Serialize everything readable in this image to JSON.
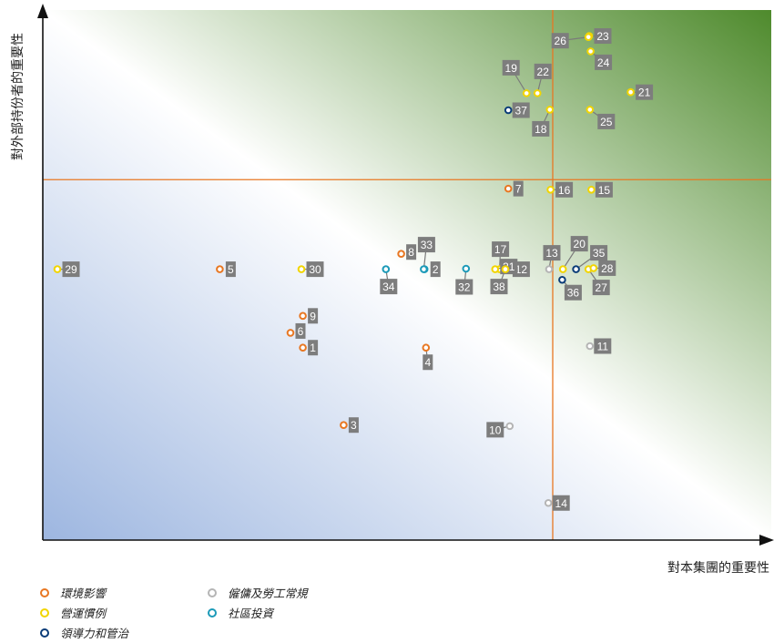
{
  "chart_data": {
    "type": "scatter",
    "xlabel": "對本集團的重要性",
    "ylabel": "對外部持份者的重要性",
    "xlim": [
      0,
      100
    ],
    "ylim": [
      0,
      100
    ],
    "grid": false,
    "quadrant_lines": {
      "x": 70,
      "y": 68
    },
    "legend_position": "bottom-left",
    "categories": [
      {
        "key": "env",
        "name": "環境影響",
        "color": "#E87722"
      },
      {
        "key": "ops",
        "name": "營運慣例",
        "color": "#F2D500"
      },
      {
        "key": "lead",
        "name": "領導力和管治",
        "color": "#0A3C78"
      },
      {
        "key": "emp",
        "name": "僱傭及勞工常規",
        "color": "#B5B5B5"
      },
      {
        "key": "com",
        "name": "社區投資",
        "color": "#1C9AB8"
      }
    ],
    "points": [
      {
        "label": "1",
        "cat": "env",
        "x": 35.7,
        "y": 36.3
      },
      {
        "label": "2",
        "cat": "com",
        "x": 52.4,
        "y": 51.1
      },
      {
        "label": "3",
        "cat": "env",
        "x": 41.3,
        "y": 21.7
      },
      {
        "label": "4",
        "cat": "env",
        "x": 52.6,
        "y": 36.3
      },
      {
        "label": "5",
        "cat": "env",
        "x": 24.3,
        "y": 51.1
      },
      {
        "label": "6",
        "cat": "env",
        "x": 34.0,
        "y": 39.1
      },
      {
        "label": "7",
        "cat": "env",
        "x": 63.9,
        "y": 66.3
      },
      {
        "label": "8",
        "cat": "env",
        "x": 49.2,
        "y": 54.0
      },
      {
        "label": "9",
        "cat": "env",
        "x": 35.7,
        "y": 42.3
      },
      {
        "label": "10",
        "cat": "emp",
        "x": 64.1,
        "y": 21.5
      },
      {
        "label": "11",
        "cat": "emp",
        "x": 75.1,
        "y": 36.6
      },
      {
        "label": "12",
        "cat": "lead",
        "x": 63.8,
        "y": 51.1
      },
      {
        "label": "13",
        "cat": "emp",
        "x": 69.5,
        "y": 51.1
      },
      {
        "label": "14",
        "cat": "emp",
        "x": 69.4,
        "y": 7.0
      },
      {
        "label": "15",
        "cat": "ops",
        "x": 75.3,
        "y": 66.1
      },
      {
        "label": "16",
        "cat": "ops",
        "x": 69.7,
        "y": 66.1
      },
      {
        "label": "17",
        "cat": "ops",
        "x": 62.7,
        "y": 51.1
      },
      {
        "label": "18",
        "cat": "ops",
        "x": 69.6,
        "y": 81.2
      },
      {
        "label": "19",
        "cat": "ops",
        "x": 66.4,
        "y": 84.3
      },
      {
        "label": "20",
        "cat": "ops",
        "x": 71.4,
        "y": 51.1
      },
      {
        "label": "21",
        "cat": "ops",
        "x": 80.7,
        "y": 84.5
      },
      {
        "label": "22",
        "cat": "ops",
        "x": 67.9,
        "y": 84.3
      },
      {
        "label": "23",
        "cat": "ops",
        "x": 75.0,
        "y": 95.1
      },
      {
        "label": "24",
        "cat": "ops",
        "x": 75.2,
        "y": 92.2
      },
      {
        "label": "25",
        "cat": "ops",
        "x": 75.1,
        "y": 81.2
      },
      {
        "label": "26",
        "cat": "ops",
        "x": 74.9,
        "y": 94.9
      },
      {
        "label": "27",
        "cat": "ops",
        "x": 74.9,
        "y": 51.1
      },
      {
        "label": "28",
        "cat": "ops",
        "x": 75.6,
        "y": 51.3
      },
      {
        "label": "29",
        "cat": "ops",
        "x": 2.0,
        "y": 51.1
      },
      {
        "label": "30",
        "cat": "ops",
        "x": 35.5,
        "y": 51.1
      },
      {
        "label": "31",
        "cat": "ops",
        "x": 62.1,
        "y": 51.1
      },
      {
        "label": "32",
        "cat": "com",
        "x": 58.1,
        "y": 51.2
      },
      {
        "label": "33",
        "cat": "com",
        "x": 52.3,
        "y": 51.1
      },
      {
        "label": "34",
        "cat": "com",
        "x": 47.1,
        "y": 51.1
      },
      {
        "label": "35",
        "cat": "lead",
        "x": 73.2,
        "y": 51.1
      },
      {
        "label": "36",
        "cat": "lead",
        "x": 71.3,
        "y": 49.1
      },
      {
        "label": "37",
        "cat": "lead",
        "x": 63.9,
        "y": 81.1
      },
      {
        "label": "38",
        "cat": "ops",
        "x": 63.5,
        "y": 51.1
      }
    ]
  }
}
